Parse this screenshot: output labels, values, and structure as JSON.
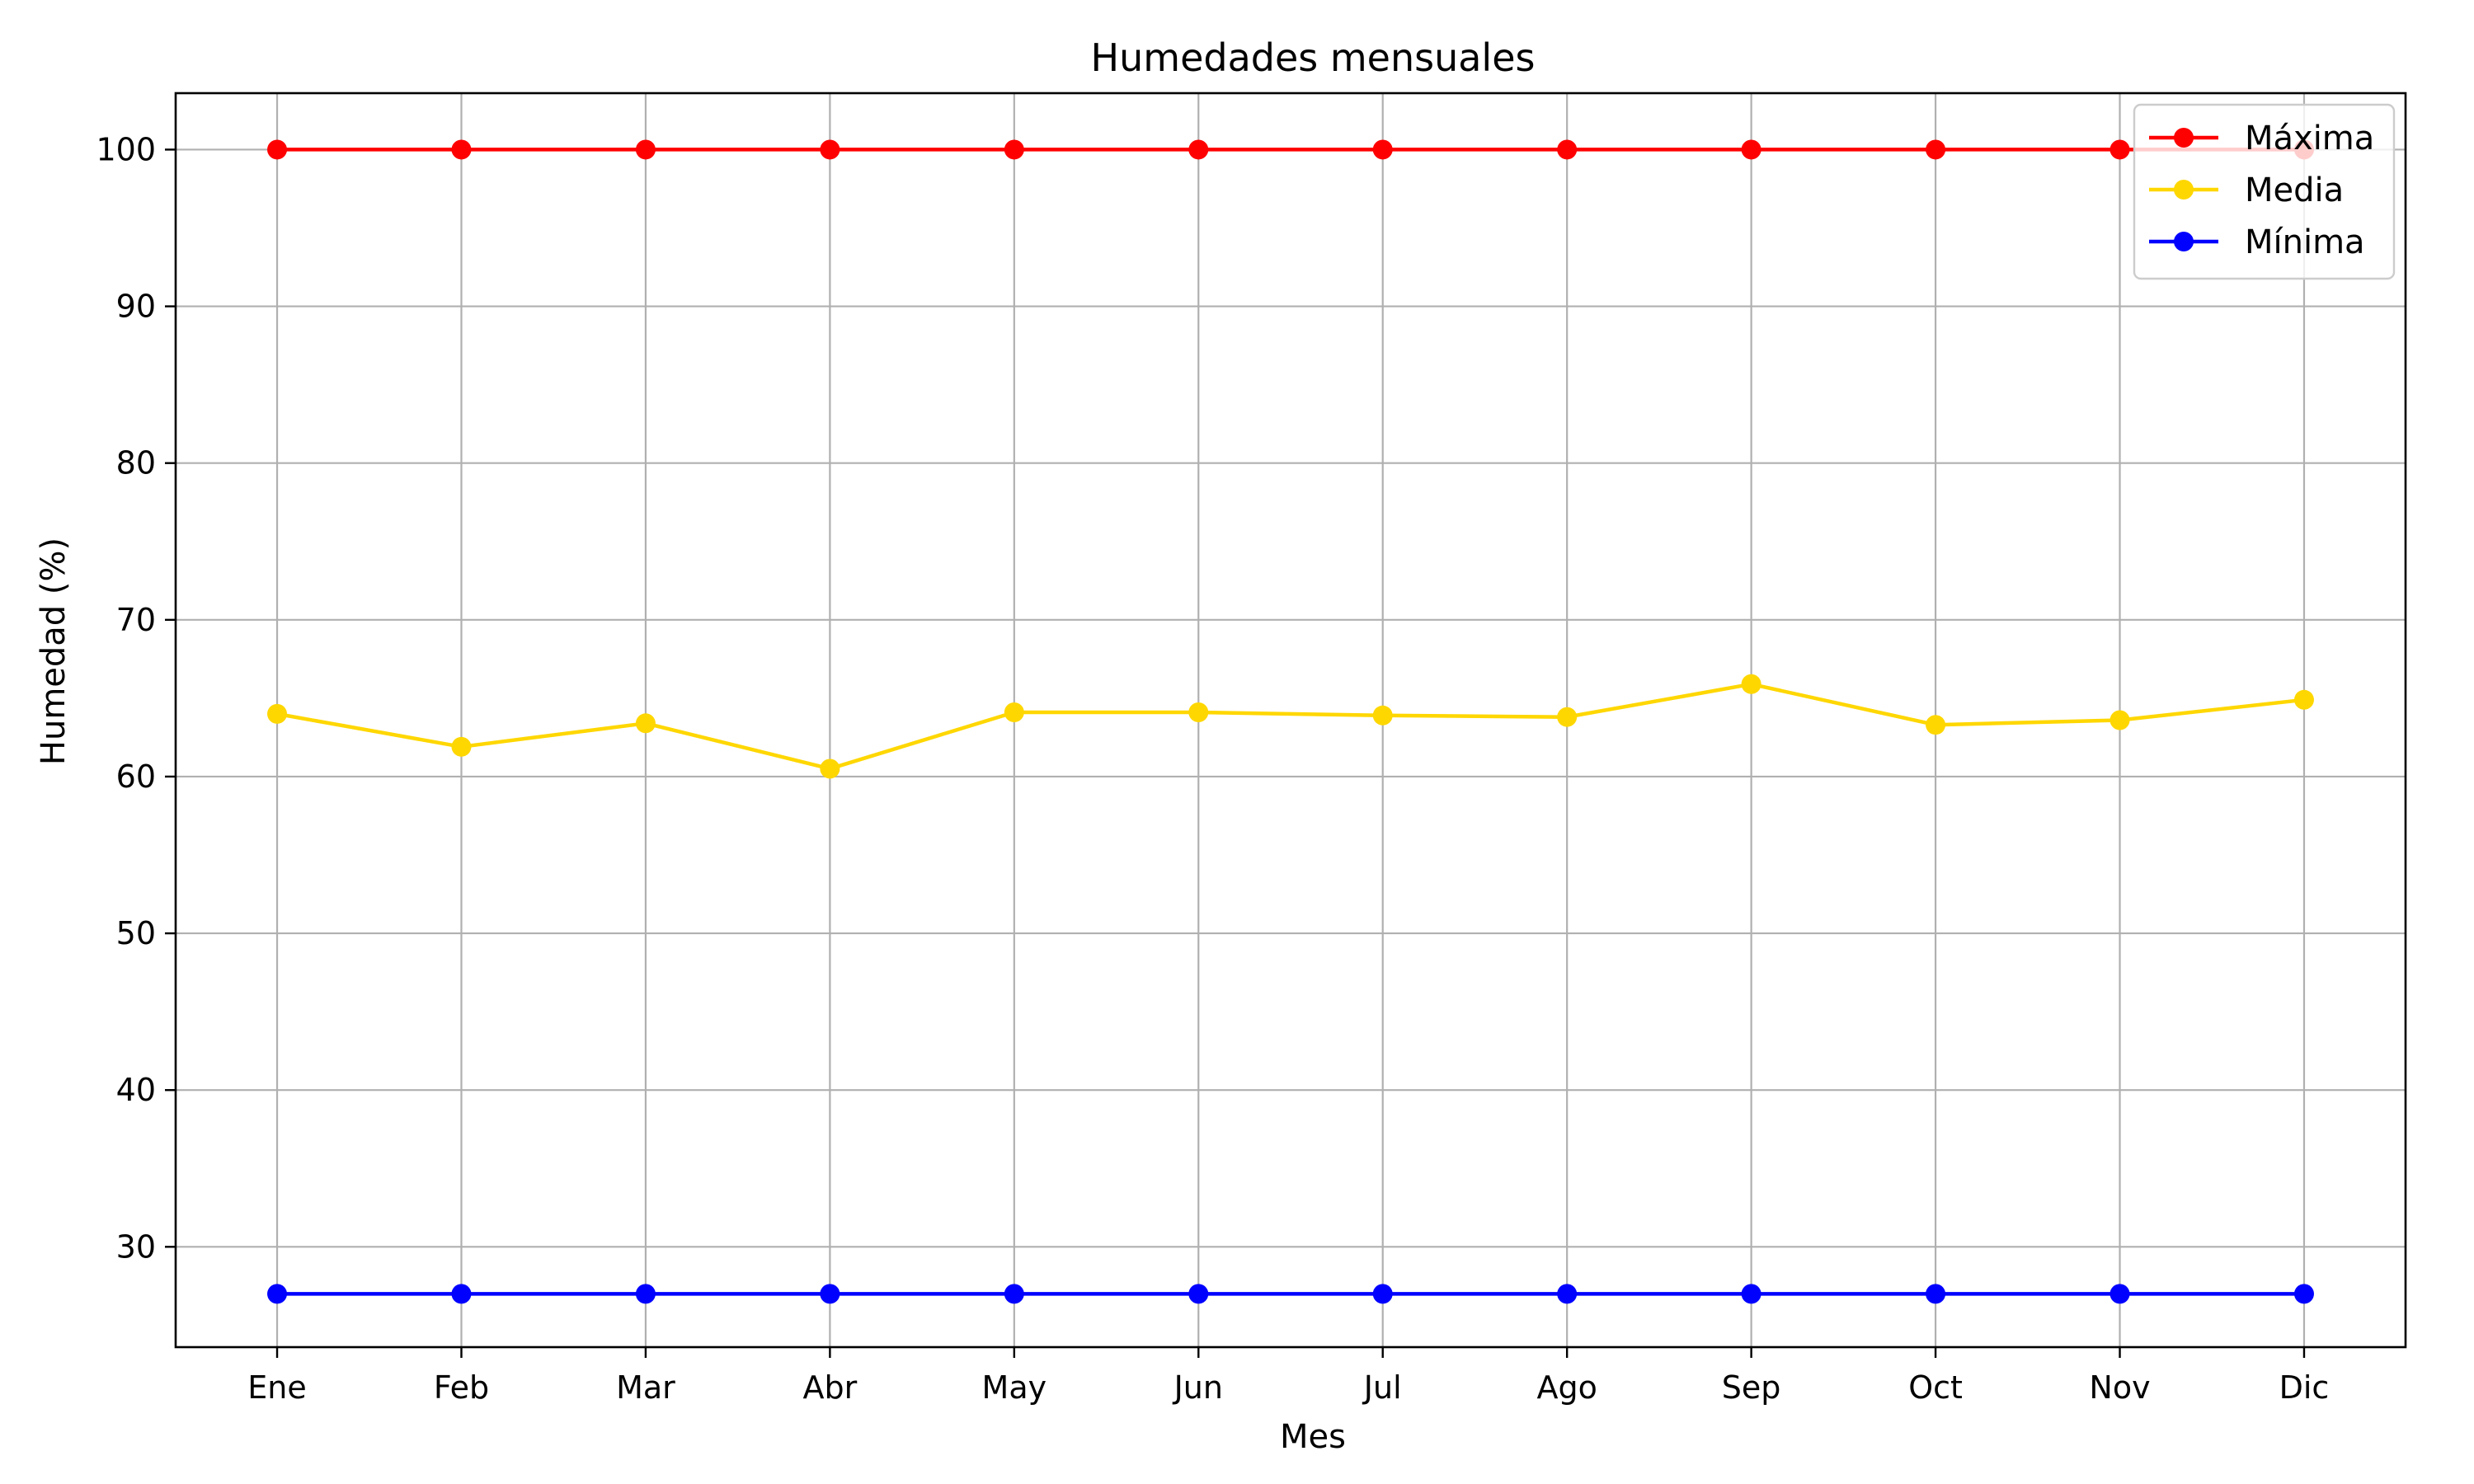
{
  "chart_data": {
    "type": "line",
    "title": "Humedades mensuales",
    "xlabel": "Mes",
    "ylabel": "Humedad (%)",
    "categories": [
      "Ene",
      "Feb",
      "Mar",
      "Abr",
      "May",
      "Jun",
      "Jul",
      "Ago",
      "Sep",
      "Oct",
      "Nov",
      "Dic"
    ],
    "ylim": [
      23.6,
      103.6
    ],
    "yticks": [
      30,
      40,
      50,
      60,
      70,
      80,
      90,
      100
    ],
    "grid": true,
    "legend_position": "top-right",
    "series": [
      {
        "name": "Máxima",
        "color": "#ff0000",
        "values": [
          100,
          100,
          100,
          100,
          100,
          100,
          100,
          100,
          100,
          100,
          100,
          100
        ]
      },
      {
        "name": "Media",
        "color": "#ffd700",
        "values": [
          64.0,
          61.9,
          63.4,
          60.5,
          64.1,
          64.1,
          63.9,
          63.8,
          65.9,
          63.3,
          63.6,
          64.9
        ]
      },
      {
        "name": "Mínima",
        "color": "#0000ff",
        "values": [
          27,
          27,
          27,
          27,
          27,
          27,
          27,
          27,
          27,
          27,
          27,
          27
        ]
      }
    ]
  }
}
